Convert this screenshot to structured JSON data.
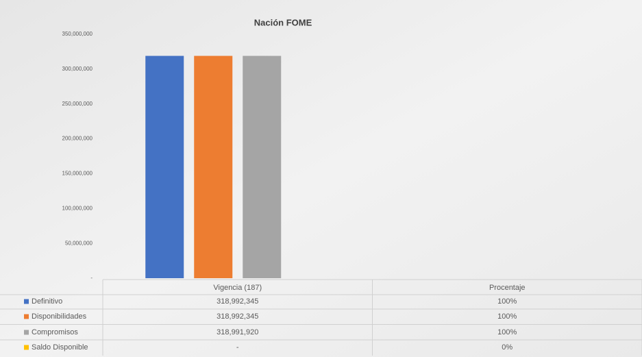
{
  "chart_data": {
    "type": "bar",
    "title": "Nación FOME",
    "categories": [
      "Vigencia (187)",
      "Procentaje"
    ],
    "series": [
      {
        "name": "Definitivo",
        "color": "#4472c4",
        "values": [
          318992345,
          1
        ],
        "value_labels": [
          "318,992,345",
          "100%"
        ]
      },
      {
        "name": "Disponibilidades",
        "color": "#ed7d31",
        "values": [
          318992345,
          1
        ],
        "value_labels": [
          "318,992,345",
          "100%"
        ]
      },
      {
        "name": "Compromisos",
        "color": "#a5a5a5",
        "values": [
          318991920,
          1
        ],
        "value_labels": [
          "318,991,920",
          "100%"
        ]
      },
      {
        "name": "Saldo Disponible",
        "color": "#ffc000",
        "values": [
          0,
          0
        ],
        "value_labels": [
          "-",
          "0%"
        ]
      }
    ],
    "ylim": [
      0,
      350000000
    ],
    "yticks": [
      {
        "value": 0,
        "label": "-"
      },
      {
        "value": 50000000,
        "label": "50,000,000"
      },
      {
        "value": 100000000,
        "label": "100,000,000"
      },
      {
        "value": 150000000,
        "label": "150,000,000"
      },
      {
        "value": 200000000,
        "label": "200,000,000"
      },
      {
        "value": 250000000,
        "label": "250,000,000"
      },
      {
        "value": 300000000,
        "label": "300,000,000"
      },
      {
        "value": 350000000,
        "label": "350,000,000"
      }
    ]
  }
}
